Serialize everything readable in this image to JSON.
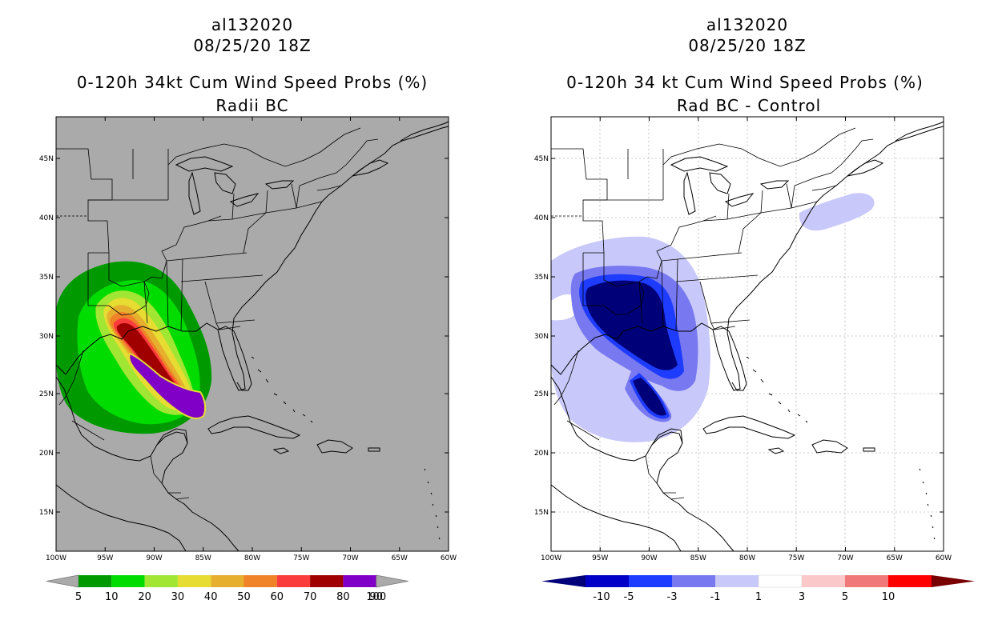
{
  "left": {
    "storm_id": "al132020",
    "datetime": "08/25/20 18Z",
    "title": "0-120h 34kt Cum Wind Speed Probs (%)",
    "subtitle": "Radii BC",
    "background_color": "#aaaaaa",
    "colorbar": {
      "colors": [
        "#009a00",
        "#00dc00",
        "#a0e632",
        "#e6dc32",
        "#e6af2d",
        "#f08228",
        "#fa3c3c",
        "#a00000",
        "#8000c8"
      ],
      "labels": [
        "5",
        "10",
        "20",
        "30",
        "40",
        "50",
        "60",
        "70",
        "80",
        "90",
        "100"
      ]
    }
  },
  "right": {
    "storm_id": "al132020",
    "datetime": "08/25/20 18Z",
    "title": "0-120h 34 kt Cum Wind Speed Probs (%)",
    "subtitle": "Rad BC - Control",
    "background_color": "#ffffff",
    "colorbar": {
      "colors": [
        "#0000c8",
        "#1e3cff",
        "#7878f0",
        "#c8c8fa",
        "#ffffff",
        "#fac8c8",
        "#f07878",
        "#ff0000"
      ],
      "end_colors": [
        "#000078",
        "#780000"
      ],
      "labels": [
        "-10",
        "-5",
        "-3",
        "-1",
        "1",
        "3",
        "5",
        "10"
      ]
    }
  },
  "axes": {
    "lon_labels": [
      "100W",
      "95W",
      "90W",
      "85W",
      "80W",
      "75W",
      "70W",
      "65W",
      "60W"
    ],
    "lat_labels": [
      "45N",
      "40N",
      "35N",
      "30N",
      "25N",
      "20N",
      "15N"
    ]
  }
}
